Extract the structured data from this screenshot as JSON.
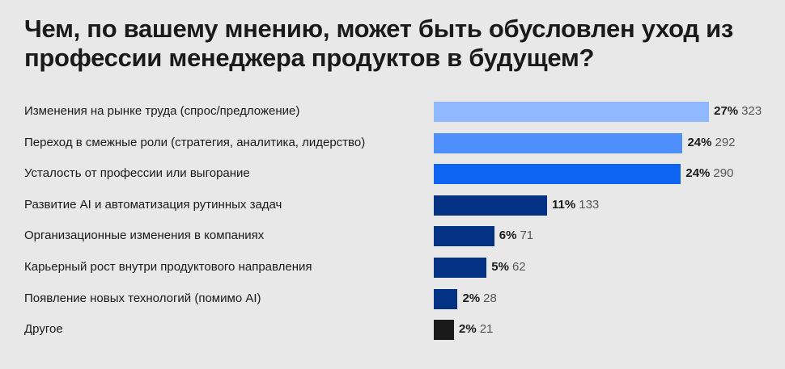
{
  "chart_data": {
    "type": "bar",
    "orientation": "horizontal",
    "title": "Чем, по вашему мнению, может быть обусловлен уход из профессии менеджера продуктов в будущем?",
    "categories": [
      "Изменения на рынке труда (спрос/предложение)",
      "Переход в смежные роли (стратегия, аналитика, лидерство)",
      "Усталость от профессии или выгорание",
      "Развитие AI и автоматизация рутинных задач",
      "Организационные изменения в компаниях",
      "Карьерный рост внутри продуктового направления",
      "Появление новых технологий (помимо AI)",
      "Другое"
    ],
    "percent_labels": [
      "27%",
      "24%",
      "24%",
      "11%",
      "6%",
      "5%",
      "2%",
      "2%"
    ],
    "values": [
      323,
      292,
      290,
      133,
      71,
      62,
      28,
      21
    ],
    "colors": [
      "#8fb8ff",
      "#4f8ffc",
      "#0d63f2",
      "#033184",
      "#033184",
      "#033184",
      "#033184",
      "#1a1a1a"
    ],
    "grid": false,
    "legend": "none"
  }
}
